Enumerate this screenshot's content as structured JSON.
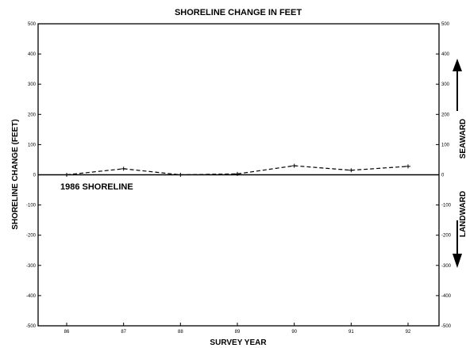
{
  "chart_data": {
    "type": "line",
    "title": "SHORELINE CHANGE IN FEET",
    "xlabel": "SURVEY YEAR",
    "ylabel": "SHORELINE CHANGE (FEET)",
    "x": [
      "86",
      "87",
      "88",
      "89",
      "90",
      "91",
      "92"
    ],
    "ylim": [
      -500,
      500
    ],
    "yticks": [
      500,
      400,
      300,
      200,
      100,
      0,
      -100,
      -200,
      -300,
      -400,
      -500
    ],
    "ytick_labels": [
      "500",
      "400",
      "300",
      "200",
      "100",
      "0",
      "-100",
      "-200",
      "-300",
      "-400",
      "-500"
    ],
    "grid": false,
    "series": [
      {
        "values": [
          0,
          20,
          0,
          3,
          30,
          15,
          28
        ],
        "style": "dashed"
      }
    ],
    "baseline_value": 0,
    "annotations": {
      "baseline": "1986 SHORELINE",
      "seaward": "SEAWARD",
      "landward": "LANDWARD"
    }
  }
}
